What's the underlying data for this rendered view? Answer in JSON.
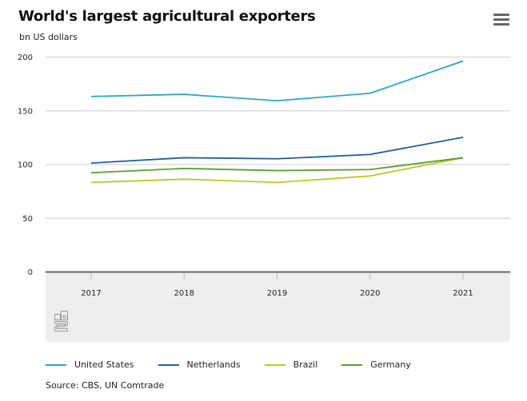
{
  "header": {
    "title": "World's largest agricultural exporters",
    "subtitle": "bn US dollars",
    "menu_icon": "hamburger-menu-icon"
  },
  "logo": {
    "icon": "cbs-logo-icon",
    "text": "cbs"
  },
  "source": "Source: CBS, UN Comtrade",
  "chart_data": {
    "type": "line",
    "title": "World's largest agricultural exporters",
    "subtitle": "bn US dollars",
    "xlabel": "",
    "ylabel": "bn US dollars",
    "x": [
      "2017",
      "2018",
      "2019",
      "2020",
      "2021"
    ],
    "ylim": [
      0,
      200
    ],
    "yticks": [
      0,
      50,
      100,
      150,
      200
    ],
    "grid": true,
    "legend_position": "bottom-left",
    "series": [
      {
        "name": "United States",
        "color": "#2aa7c9",
        "values": [
          163,
          165,
          159,
          166,
          196
        ]
      },
      {
        "name": "Netherlands",
        "color": "#1f5f9e",
        "values": [
          101,
          106,
          105,
          109,
          125
        ]
      },
      {
        "name": "Brazil",
        "color": "#b8cc1f",
        "values": [
          83,
          86,
          83,
          89,
          106
        ]
      },
      {
        "name": "Germany",
        "color": "#5a9e2f",
        "values": [
          92,
          96,
          94,
          95,
          106
        ]
      }
    ],
    "source": "Source: CBS, UN Comtrade"
  }
}
